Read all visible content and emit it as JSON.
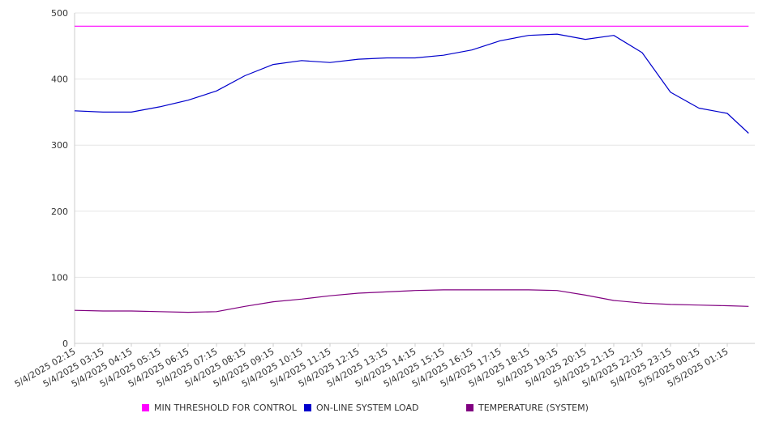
{
  "chart_data": {
    "type": "line",
    "title": "",
    "xlabel": "",
    "ylabel": "",
    "ylim": [
      0,
      500
    ],
    "yticks": [
      0,
      100,
      200,
      300,
      400,
      500
    ],
    "grid": true,
    "legend_position": "bottom",
    "x_tick_labels": [
      "5/4/2025 02:15",
      "5/4/2025 03:15",
      "5/4/2025 04:15",
      "5/4/2025 05:15",
      "5/4/2025 06:15",
      "5/4/2025 07:15",
      "5/4/2025 08:15",
      "5/4/2025 09:15",
      "5/4/2025 10:15",
      "5/4/2025 11:15",
      "5/4/2025 12:15",
      "5/4/2025 13:15",
      "5/4/2025 14:15",
      "5/4/2025 15:15",
      "5/4/2025 16:15",
      "5/4/2025 17:15",
      "5/4/2025 18:15",
      "5/4/2025 19:15",
      "5/4/2025 20:15",
      "5/4/2025 21:15",
      "5/4/2025 22:15",
      "5/4/2025 23:15",
      "5/5/2025 00:15",
      "5/5/2025 01:15"
    ],
    "x_hours": [
      0,
      1,
      2,
      3,
      4,
      5,
      6,
      7,
      8,
      9,
      10,
      11,
      12,
      13,
      14,
      15,
      16,
      17,
      18,
      19,
      20,
      21,
      22,
      23,
      23.75
    ],
    "series": [
      {
        "name": "MIN THRESHOLD FOR CONTROL",
        "color": "#ff00ff",
        "values": [
          480,
          480,
          480,
          480,
          480,
          480,
          480,
          480,
          480,
          480,
          480,
          480,
          480,
          480,
          480,
          480,
          480,
          480,
          480,
          480,
          480,
          480,
          480,
          480,
          480
        ]
      },
      {
        "name": "ON-LINE SYSTEM LOAD",
        "color": "#0000cc",
        "values": [
          352,
          350,
          350,
          358,
          368,
          382,
          405,
          422,
          428,
          425,
          430,
          432,
          432,
          436,
          444,
          458,
          466,
          468,
          460,
          466,
          440,
          380,
          356,
          348,
          318
        ]
      },
      {
        "name": "TEMPERATURE (SYSTEM)",
        "color": "#800080",
        "values": [
          50,
          49,
          49,
          48,
          47,
          48,
          56,
          63,
          67,
          72,
          76,
          78,
          80,
          81,
          81,
          81,
          81,
          80,
          73,
          65,
          61,
          59,
          58,
          57,
          56
        ]
      }
    ]
  }
}
